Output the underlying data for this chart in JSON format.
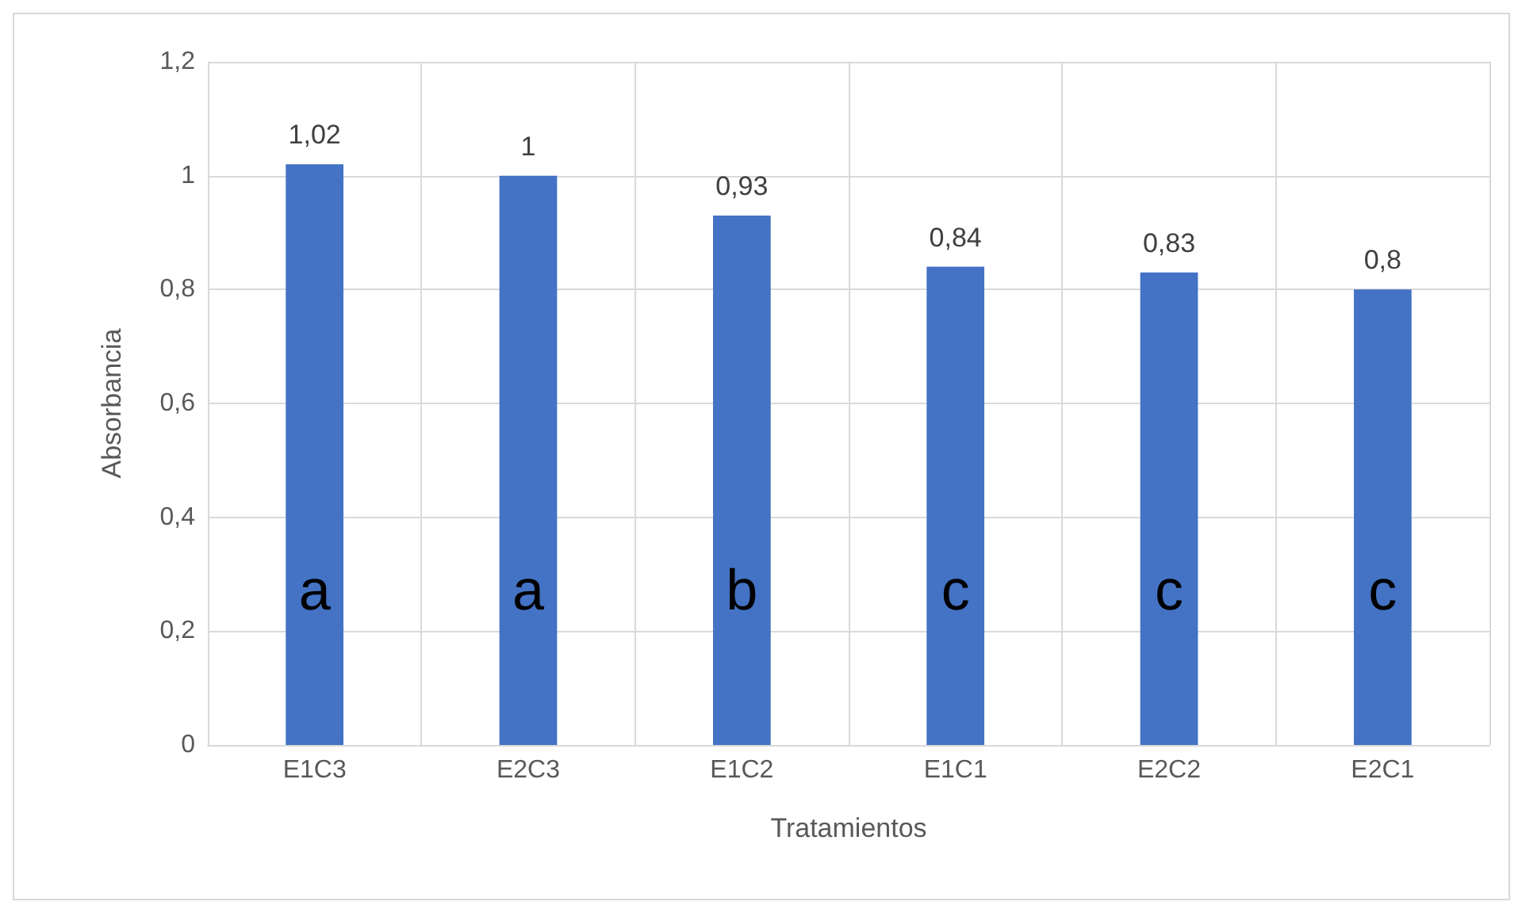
{
  "chart_data": {
    "type": "bar",
    "xlabel": "Tratamientos",
    "ylabel": "Absorbancia",
    "categories": [
      "E1C3",
      "E2C3",
      "E1C2",
      "E1C1",
      "E2C2",
      "E2C1"
    ],
    "values": [
      1.02,
      1,
      0.93,
      0.84,
      0.83,
      0.8
    ],
    "color": "#4472c4",
    "value_labels": [
      "1,02",
      "1",
      "0,93",
      "0,84",
      "0,83",
      "0,8"
    ],
    "ylim": [
      0,
      1.2
    ],
    "yticks": [
      0,
      {
        "value": 0.2,
        "label": "0,2"
      },
      {
        "value": 0.4,
        "label": "0,4"
      },
      {
        "value": 0.6,
        "label": "0,6"
      },
      {
        "value": 0.8,
        "label": "0,8"
      },
      1,
      {
        "value": 1.2,
        "label": "1,2"
      }
    ],
    "grid": true,
    "annotations": [
      "a",
      "a",
      "b",
      "c",
      "c",
      "c"
    ]
  }
}
